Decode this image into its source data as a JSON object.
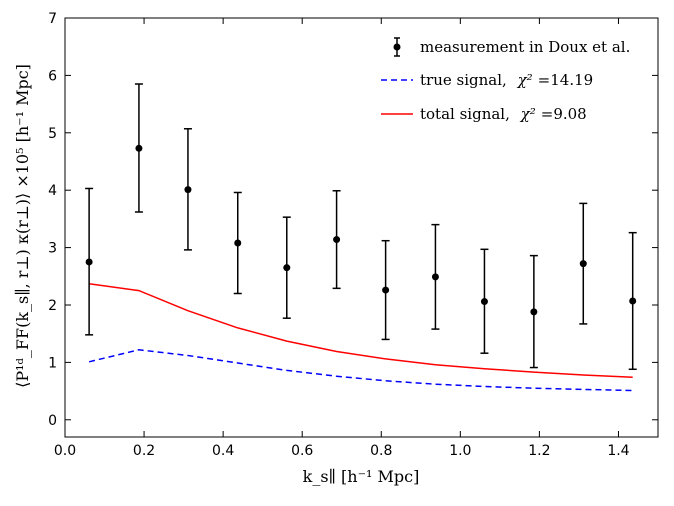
{
  "chart_data": {
    "type": "line",
    "xlabel": "k_s∥ [h⁻¹ Mpc]",
    "ylabel": "⟨P¹ᵈ_FF(k_s∥, r⊥) κ(r⊥)⟩ ×10⁵ [h⁻¹ Mpc]",
    "xlim": [
      0.0,
      1.5
    ],
    "ylim": [
      -0.3,
      7.0
    ],
    "xticks": [
      0.0,
      0.2,
      0.4,
      0.6,
      0.8,
      1.0,
      1.2,
      1.4
    ],
    "yticks": [
      0,
      1,
      2,
      3,
      4,
      5,
      6,
      7
    ],
    "xtick_labels": [
      "0.0",
      "0.2",
      "0.4",
      "0.6",
      "0.8",
      "1.0",
      "1.2",
      "1.4"
    ],
    "ytick_labels": [
      "0",
      "1",
      "2",
      "3",
      "4",
      "5",
      "6",
      "7"
    ],
    "measurement": {
      "name": "measurement in Doux et al.",
      "color": "#000000",
      "x": [
        0.061,
        0.187,
        0.311,
        0.437,
        0.561,
        0.687,
        0.811,
        0.937,
        1.061,
        1.186,
        1.311,
        1.436
      ],
      "y": [
        2.75,
        4.73,
        4.01,
        3.08,
        2.65,
        3.14,
        2.26,
        2.49,
        2.06,
        1.88,
        2.72,
        2.07
      ],
      "err_low": [
        1.27,
        1.11,
        1.05,
        0.88,
        0.88,
        0.85,
        0.86,
        0.91,
        0.9,
        0.97,
        1.05,
        1.19
      ],
      "err_high": [
        1.28,
        1.12,
        1.06,
        0.88,
        0.88,
        0.85,
        0.86,
        0.91,
        0.91,
        0.98,
        1.05,
        1.19
      ]
    },
    "series": [
      {
        "name": "true signal",
        "chi2_label": "χ²",
        "chi2_value": "=14.19",
        "color": "#0000ff",
        "style": "dashed",
        "x": [
          0.061,
          0.187,
          0.311,
          0.437,
          0.561,
          0.687,
          0.811,
          0.937,
          1.061,
          1.186,
          1.311,
          1.436
        ],
        "y": [
          1.01,
          1.22,
          1.12,
          0.99,
          0.86,
          0.76,
          0.68,
          0.62,
          0.58,
          0.55,
          0.53,
          0.51
        ]
      },
      {
        "name": "total signal",
        "chi2_label": "χ²",
        "chi2_value": "=9.08",
        "color": "#ff0000",
        "style": "solid",
        "x": [
          0.061,
          0.187,
          0.311,
          0.437,
          0.561,
          0.687,
          0.811,
          0.937,
          1.061,
          1.186,
          1.311,
          1.436
        ],
        "y": [
          2.37,
          2.25,
          1.9,
          1.6,
          1.37,
          1.19,
          1.06,
          0.96,
          0.89,
          0.83,
          0.78,
          0.74
        ]
      }
    ],
    "legend_position": "top-right",
    "grid": false
  }
}
